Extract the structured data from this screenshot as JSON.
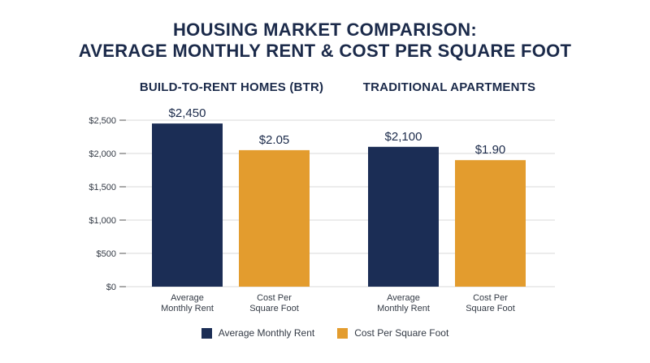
{
  "title_line1": "HOUSING MARKET COMPARISON:",
  "title_line2": "AVERAGE MONTHLY RENT & COST PER SQUARE FOOT",
  "colors": {
    "rent": "#1b2d55",
    "sqft": "#e39c2e",
    "text": "#1b2a4a",
    "grid": "#d9d9d9"
  },
  "legend": [
    {
      "label": "Average Monthly Rent",
      "color": "#1b2d55"
    },
    {
      "label": "Cost Per Square Foot",
      "color": "#e39c2e"
    }
  ],
  "chart_data": {
    "type": "bar",
    "title": "HOUSING MARKET COMPARISON: AVERAGE MONTHLY RENT & COST PER SQUARE FOOT",
    "yticks": [
      "$0",
      "$500",
      "$1,000",
      "$1,500",
      "$2,000",
      "$2,500"
    ],
    "ytick_values": [
      0,
      500,
      1000,
      1500,
      2000,
      2500
    ],
    "ylim": [
      0,
      2500
    ],
    "grid": true,
    "legend_position": "bottom",
    "groups": [
      {
        "name": "BUILD-TO-RENT HOMES (BTR)",
        "bars": [
          {
            "category": [
              "Average",
              "Monthly Rent"
            ],
            "series": "Average Monthly Rent",
            "value": 2450,
            "label": "$2,450"
          },
          {
            "category": [
              "Cost Per",
              "Square Foot"
            ],
            "series": "Cost Per Square Foot",
            "value": 2050,
            "label": "$2.05"
          }
        ]
      },
      {
        "name": "TRADITIONAL APARTMENTS",
        "bars": [
          {
            "category": [
              "Average",
              "Monthly Rent"
            ],
            "series": "Average Monthly Rent",
            "value": 2100,
            "label": "$2,100"
          },
          {
            "category": [
              "Cost Per",
              "Square Foot"
            ],
            "series": "Cost Per Square Foot",
            "value": 1900,
            "label": "$1.90"
          }
        ]
      }
    ]
  }
}
